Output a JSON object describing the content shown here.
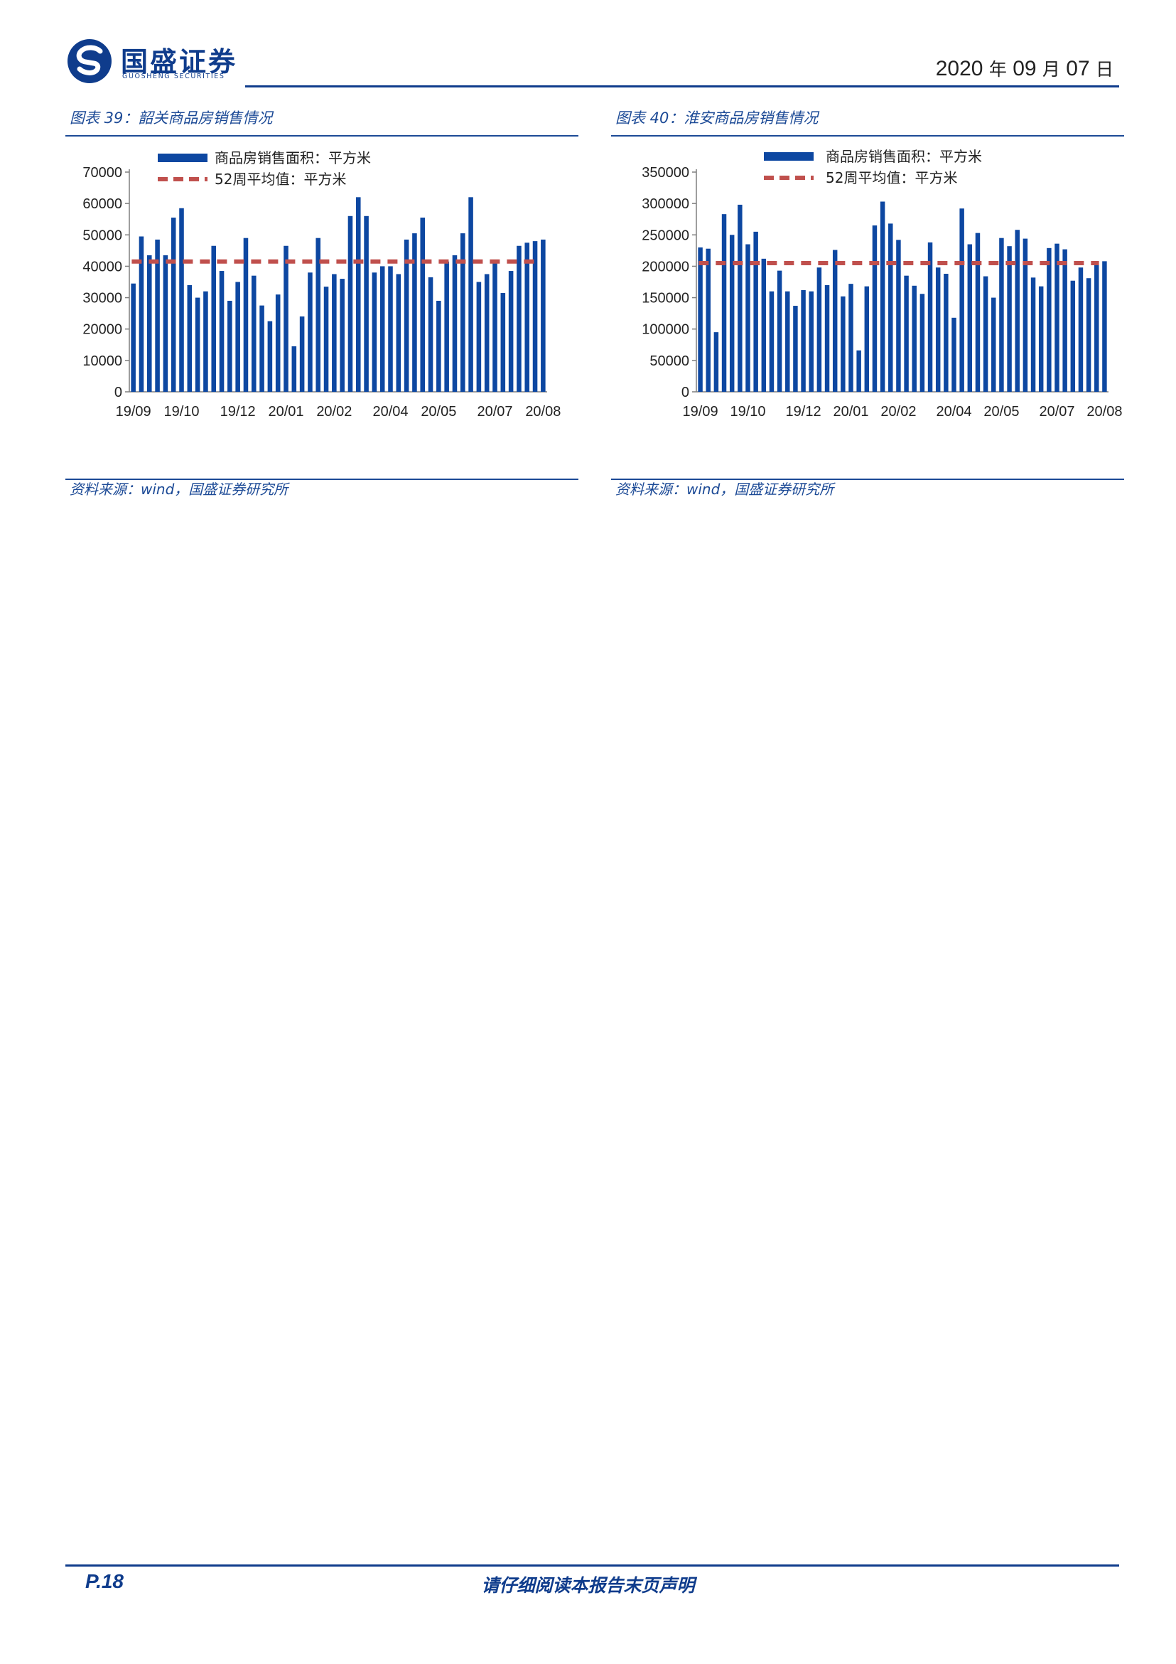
{
  "header": {
    "company_cn": "国盛证券",
    "company_en": "GUOSHENG SECURITIES",
    "date_year": "2020",
    "date_year_unit": "年",
    "date_month": "09",
    "date_month_unit": "月",
    "date_day": "07",
    "date_day_unit": "日",
    "brand_color": "#0f3c8c"
  },
  "panels": [
    {
      "title": "图表 39：韶关商品房销售情况",
      "source": "资料来源：wind，国盛证券研究所"
    },
    {
      "title": "图表 40：淮安商品房销售情况",
      "source": "资料来源：wind，国盛证券研究所"
    }
  ],
  "footer": {
    "page": "P.18",
    "disclaimer": "请仔细阅读本报告末页声明"
  },
  "chart_data": [
    {
      "type": "bar",
      "bar_color": "#0d47a1",
      "line_color": "#c0504d",
      "legend_position": "top",
      "grid": false,
      "ylim": [
        0,
        70000
      ],
      "yticks": [
        "0",
        "10000",
        "20000",
        "30000",
        "40000",
        "50000",
        "60000",
        "70000"
      ],
      "xtick_labels": [
        "19/09",
        "19/10",
        "19/12",
        "20/01",
        "20/02",
        "20/04",
        "20/05",
        "20/07",
        "20/08"
      ],
      "series": [
        {
          "name": "商品房销售面积：平方米",
          "type": "bar",
          "values": [
            34500,
            49500,
            43500,
            48500,
            43500,
            55500,
            58500,
            34000,
            30000,
            32000,
            46500,
            38500,
            29000,
            35000,
            49000,
            37000,
            27500,
            22500,
            31000,
            46500,
            14500,
            24000,
            38000,
            49000,
            33500,
            37500,
            36000,
            56000,
            62000,
            56000,
            38000,
            40000,
            40000,
            37500,
            48500,
            50500,
            55500,
            36500,
            29000,
            41500,
            43500,
            50500,
            62000,
            35000,
            37500,
            41000,
            31500,
            38500,
            46500,
            47500,
            48000,
            48500
          ]
        },
        {
          "name": "52周平均值：平方米",
          "type": "line",
          "style": "dashed",
          "value": 41500
        }
      ]
    },
    {
      "type": "bar",
      "bar_color": "#0d47a1",
      "line_color": "#c0504d",
      "legend_position": "top",
      "grid": false,
      "ylim": [
        0,
        350000
      ],
      "yticks": [
        "0",
        "50000",
        "100000",
        "150000",
        "200000",
        "250000",
        "300000",
        "350000"
      ],
      "xtick_labels": [
        "19/09",
        "19/10",
        "19/12",
        "20/01",
        "20/02",
        "20/04",
        "20/05",
        "20/07",
        "20/08"
      ],
      "series": [
        {
          "name": "商品房销售面积：平方米",
          "type": "bar",
          "values": [
            230000,
            228000,
            95000,
            283000,
            250000,
            298000,
            235000,
            255000,
            212000,
            160000,
            193000,
            160000,
            137000,
            162000,
            160000,
            198000,
            170000,
            226000,
            152000,
            172000,
            66000,
            168000,
            265000,
            303000,
            268000,
            242000,
            185000,
            169000,
            156000,
            238000,
            198000,
            188000,
            118000,
            292000,
            235000,
            253000,
            184000,
            150000,
            245000,
            232000,
            258000,
            244000,
            182000,
            168000,
            229000,
            236000,
            227000,
            177000,
            198000,
            181000,
            205000,
            208000
          ]
        },
        {
          "name": "52周平均值：平方米",
          "type": "line",
          "style": "dashed",
          "value": 205000
        }
      ]
    }
  ]
}
